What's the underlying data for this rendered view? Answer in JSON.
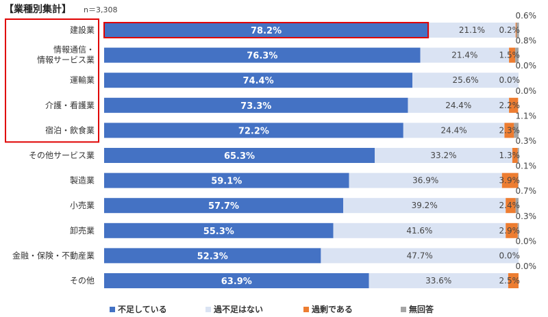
{
  "chart_data": {
    "type": "bar",
    "orientation": "horizontal",
    "stacked": true,
    "title": "【業種別集計】",
    "note": "n＝3,308",
    "categories": [
      [
        "建設業"
      ],
      [
        "情報通信・",
        "情報サービス業"
      ],
      [
        "運輸業"
      ],
      [
        "介護・看護業"
      ],
      [
        "宿泊・飲食業"
      ],
      [
        "その他サービス業"
      ],
      [
        "製造業"
      ],
      [
        "小売業"
      ],
      [
        "卸売業"
      ],
      [
        "金融・保険・不動産業"
      ],
      [
        "その他"
      ]
    ],
    "series": [
      {
        "name": "不足している",
        "color": "#4472c4",
        "values": [
          78.2,
          76.3,
          74.4,
          73.3,
          72.2,
          65.3,
          59.1,
          57.7,
          55.3,
          52.3,
          63.9
        ]
      },
      {
        "name": "過不足はない",
        "color": "#dae3f3",
        "values": [
          21.1,
          21.4,
          25.6,
          24.4,
          24.4,
          33.2,
          36.9,
          39.2,
          41.6,
          47.7,
          33.6
        ]
      },
      {
        "name": "過剰である",
        "color": "#ed7d31",
        "values": [
          0.2,
          1.5,
          0.0,
          2.2,
          2.3,
          1.3,
          3.9,
          2.4,
          2.9,
          0.0,
          2.5
        ]
      },
      {
        "name": "無回答",
        "color": "#a5a5a5",
        "values": [
          0.6,
          0.8,
          0.0,
          0.0,
          1.1,
          0.3,
          0.1,
          0.7,
          0.3,
          0.0,
          0.0
        ]
      }
    ],
    "labels": {
      "series0": [
        "78.2%",
        "76.3%",
        "74.4%",
        "73.3%",
        "72.2%",
        "65.3%",
        "59.1%",
        "57.7%",
        "55.3%",
        "52.3%",
        "63.9%"
      ],
      "series1": [
        "21.1%",
        "21.4%",
        "25.6%",
        "24.4%",
        "24.4%",
        "33.2%",
        "36.9%",
        "39.2%",
        "41.6%",
        "47.7%",
        "33.6%"
      ],
      "series2": [
        "0.2%",
        "1.5%",
        "0.0%",
        "2.2%",
        "2.3%",
        "1.3%",
        "3.9%",
        "2.4%",
        "2.9%",
        "0.0%",
        "2.5%"
      ],
      "series3": [
        "0.6%",
        "0.8%",
        "0.0%",
        "0.0%",
        "1.1%",
        "0.3%",
        "0.1%",
        "0.7%",
        "0.3%",
        "0.0%",
        "0.0%"
      ]
    },
    "xlim": [
      0,
      100
    ],
    "grid": false,
    "legend_position": "bottom",
    "highlighted_categories": [
      "建設業",
      "情報通信・情報サービス業",
      "運輸業",
      "介護・看護業",
      "宿泊・飲食業"
    ],
    "highlighted_bar": "建設業",
    "highlight_color": "#e00000"
  }
}
